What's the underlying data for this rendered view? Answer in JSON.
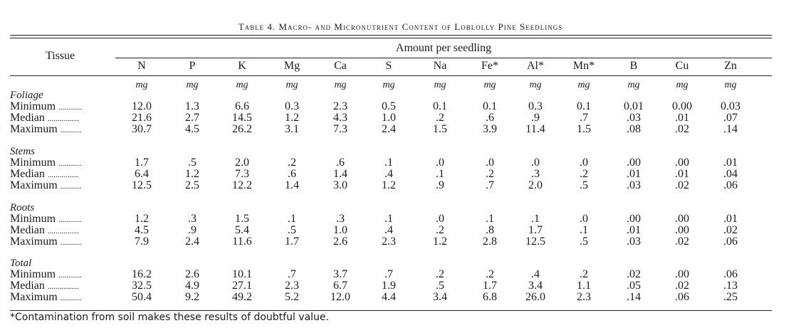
{
  "title": "Table 4. Macro- and Micronutrient Content of Loblolly Pine Seedlings",
  "tissue_header": "Tissue",
  "amount_header": "Amount per seedling",
  "columns": [
    "N",
    "P",
    "K",
    "Mg",
    "Ca",
    "S",
    "Na",
    "Fe*",
    "Al*",
    "Mn*",
    "B",
    "Cu",
    "Zn"
  ],
  "unit": "mg",
  "sections": [
    {
      "name": "Foliage",
      "rows": [
        {
          "label": "Minimum",
          "dots": "............",
          "values": [
            "12.0",
            "1.3",
            "6.6",
            "0.3",
            "2.3",
            "0.5",
            "0.1",
            "0.1",
            "0.3",
            "0.1",
            "0.01",
            "0.00",
            "0.03"
          ]
        },
        {
          "label": "Median",
          "dots": "................",
          "values": [
            "21.6",
            "2.7",
            "14.5",
            "1.2",
            "4.3",
            "1.0",
            ".2",
            ".6",
            ".9",
            ".7",
            ".03",
            ".01",
            ".07"
          ]
        },
        {
          "label": "Maximum",
          "dots": "...........",
          "values": [
            "30.7",
            "4.5",
            "26.2",
            "3.1",
            "7.3",
            "2.4",
            "1.5",
            "3.9",
            "11.4",
            "1.5",
            ".08",
            ".02",
            ".14"
          ]
        }
      ]
    },
    {
      "name": "Stems",
      "rows": [
        {
          "label": "Minimum",
          "dots": "............",
          "values": [
            "1.7",
            ".5",
            "2.0",
            ".2",
            ".6",
            ".1",
            ".0",
            ".0",
            ".0",
            ".0",
            ".00",
            ".00",
            ".01"
          ]
        },
        {
          "label": "Median",
          "dots": "................",
          "values": [
            "6.4",
            "1.2",
            "7.3",
            ".6",
            "1.4",
            ".4",
            ".1",
            ".2",
            ".3",
            ".2",
            ".01",
            ".01",
            ".04"
          ]
        },
        {
          "label": "Maximum",
          "dots": "...........",
          "values": [
            "12.5",
            "2.5",
            "12.2",
            "1.4",
            "3.0",
            "1.2",
            ".9",
            ".7",
            "2.0",
            ".5",
            ".03",
            ".02",
            ".06"
          ]
        }
      ]
    },
    {
      "name": "Roots",
      "rows": [
        {
          "label": "Minimum",
          "dots": "............",
          "values": [
            "1.2",
            ".3",
            "1.5",
            ".1",
            ".3",
            ".1",
            ".0",
            ".1",
            ".1",
            ".0",
            ".00",
            ".00",
            ".01"
          ]
        },
        {
          "label": "Median",
          "dots": "................",
          "values": [
            "4.5",
            ".9",
            "5.4",
            ".5",
            "1.0",
            ".4",
            ".2",
            ".8",
            "1.7",
            ".1",
            ".01",
            ".00",
            ".02"
          ]
        },
        {
          "label": "Maximum",
          "dots": "...........",
          "values": [
            "7.9",
            "2.4",
            "11.6",
            "1.7",
            "2.6",
            "2.3",
            "1.2",
            "2.8",
            "12.5",
            ".5",
            ".03",
            ".02",
            ".06"
          ]
        }
      ]
    },
    {
      "name": "Total",
      "rows": [
        {
          "label": "Minimum",
          "dots": "............",
          "values": [
            "16.2",
            "2.6",
            "10.1",
            ".7",
            "3.7",
            ".7",
            ".2",
            ".2",
            ".4",
            ".2",
            ".02",
            ".00",
            ".06"
          ]
        },
        {
          "label": "Median",
          "dots": "................",
          "values": [
            "32.5",
            "4.9",
            "27.1",
            "2.3",
            "6.7",
            "1.9",
            ".5",
            "1.7",
            "3.4",
            "1.1",
            ".05",
            ".02",
            ".13"
          ]
        },
        {
          "label": "Maximum",
          "dots": "...........",
          "values": [
            "50.4",
            "9.2",
            "49.2",
            "5.2",
            "12.0",
            "4.4",
            "3.4",
            "6.8",
            "26.0",
            "2.3",
            ".14",
            ".06",
            ".25"
          ]
        }
      ]
    }
  ],
  "footnote": "*Contamination from soil makes these results of doubtful value."
}
